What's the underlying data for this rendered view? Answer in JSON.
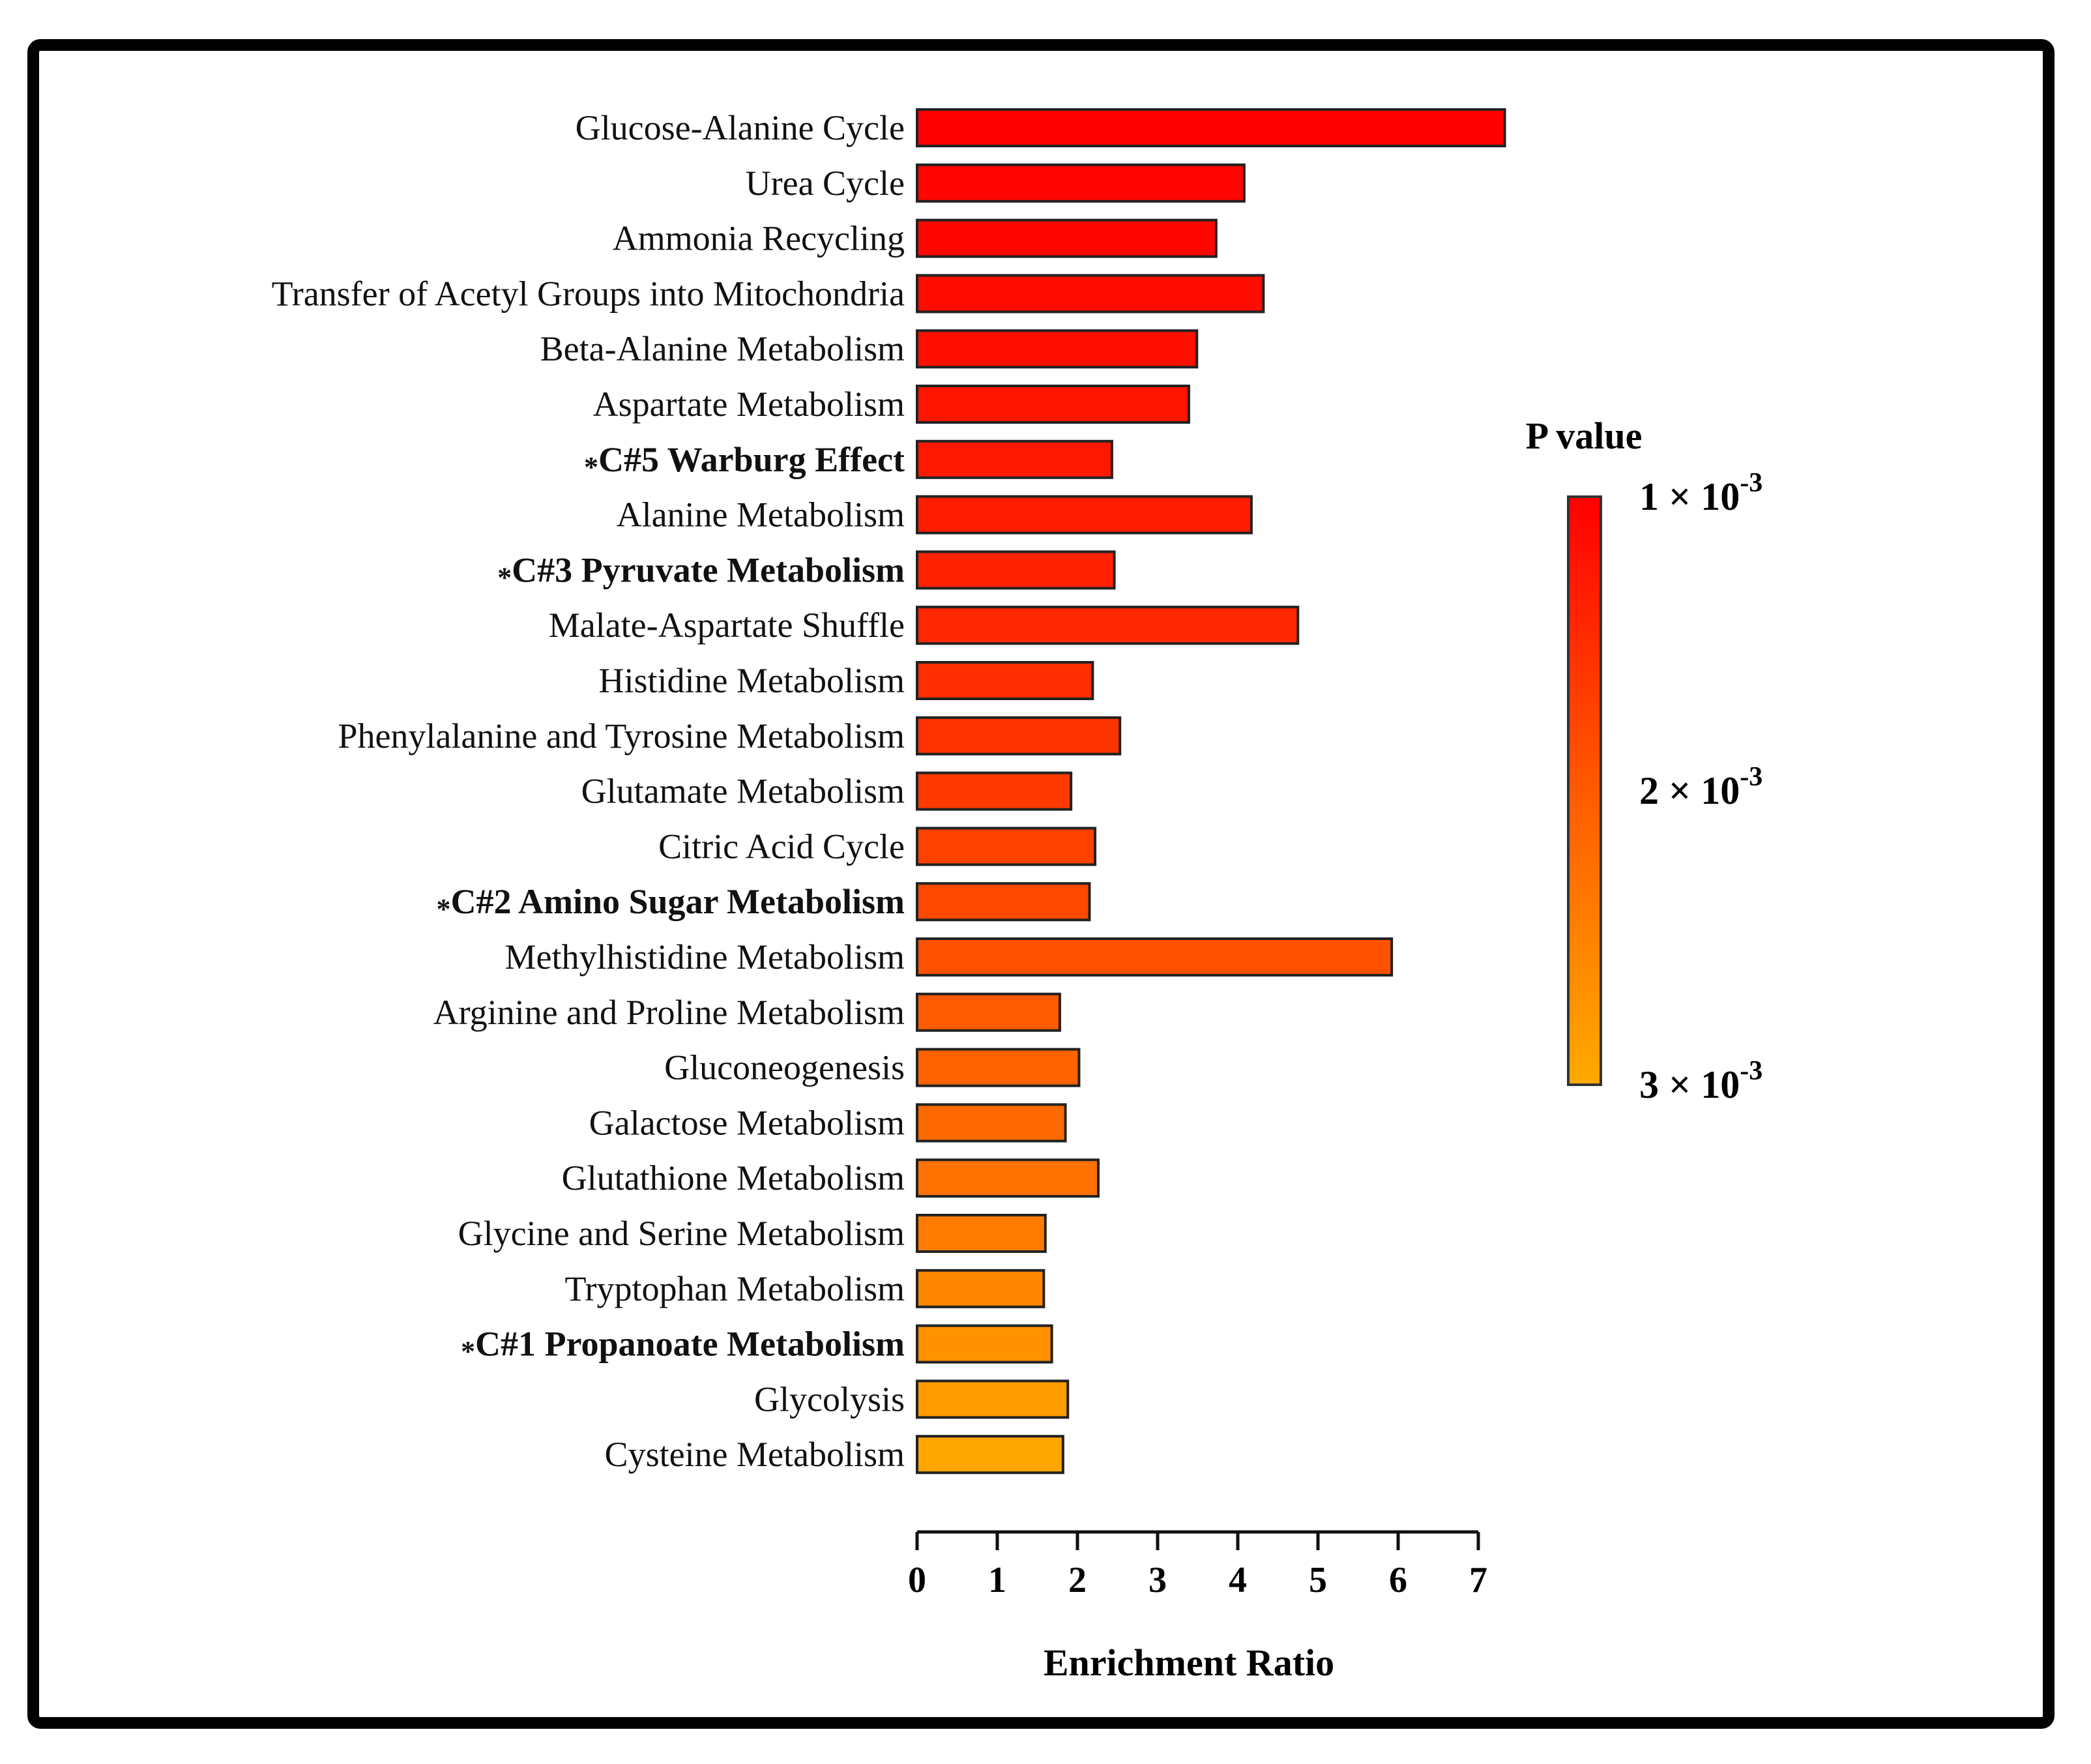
{
  "chart_data": {
    "type": "bar",
    "orientation": "horizontal",
    "xlabel": "Enrichment Ratio",
    "xlim": [
      0,
      7
    ],
    "xticks": [
      0,
      1,
      2,
      3,
      4,
      5,
      6,
      7
    ],
    "categories": [
      {
        "label": "Glucose-Alanine Cycle",
        "prefix": "",
        "value": 7.33,
        "p": 1.0,
        "bold": false
      },
      {
        "label": "Urea Cycle",
        "prefix": "",
        "value": 4.08,
        "p": 1.04,
        "bold": false
      },
      {
        "label": "Ammonia Recycling",
        "prefix": "",
        "value": 3.73,
        "p": 1.08,
        "bold": false
      },
      {
        "label": "Transfer of Acetyl Groups into Mitochondria",
        "prefix": "",
        "value": 4.32,
        "p": 1.12,
        "bold": false
      },
      {
        "label": "Beta-Alanine Metabolism",
        "prefix": "",
        "value": 3.49,
        "p": 1.17,
        "bold": false
      },
      {
        "label": "Aspartate Metabolism",
        "prefix": "",
        "value": 3.39,
        "p": 1.22,
        "bold": false
      },
      {
        "label": "C#5 Warburg Effect",
        "prefix": "*",
        "value": 2.43,
        "p": 1.27,
        "bold": true
      },
      {
        "label": "Alanine Metabolism",
        "prefix": "",
        "value": 4.17,
        "p": 1.32,
        "bold": false
      },
      {
        "label": "C#3 Pyruvate Metabolism",
        "prefix": "*",
        "value": 2.46,
        "p": 1.37,
        "bold": true
      },
      {
        "label": "Malate-Aspartate Shuffle",
        "prefix": "",
        "value": 4.75,
        "p": 1.43,
        "bold": false
      },
      {
        "label": "Histidine Metabolism",
        "prefix": "",
        "value": 2.19,
        "p": 1.5,
        "bold": false
      },
      {
        "label": "Phenylalanine and Tyrosine Metabolism",
        "prefix": "",
        "value": 2.53,
        "p": 1.57,
        "bold": false
      },
      {
        "label": "Glutamate Metabolism",
        "prefix": "",
        "value": 1.92,
        "p": 1.64,
        "bold": false
      },
      {
        "label": "Citric Acid Cycle",
        "prefix": "",
        "value": 2.22,
        "p": 1.72,
        "bold": false
      },
      {
        "label": "C#2 Amino Sugar Metabolism",
        "prefix": "*",
        "value": 2.15,
        "p": 1.8,
        "bold": true
      },
      {
        "label": "Methylhistidine Metabolism",
        "prefix": "",
        "value": 5.92,
        "p": 1.9,
        "bold": false
      },
      {
        "label": "Arginine and Proline Metabolism",
        "prefix": "",
        "value": 1.78,
        "p": 2.0,
        "bold": false
      },
      {
        "label": "Gluconeogenesis",
        "prefix": "",
        "value": 2.02,
        "p": 2.1,
        "bold": false
      },
      {
        "label": "Galactose Metabolism",
        "prefix": "",
        "value": 1.85,
        "p": 2.2,
        "bold": false
      },
      {
        "label": "Glutathione Metabolism",
        "prefix": "",
        "value": 2.26,
        "p": 2.3,
        "bold": false
      },
      {
        "label": "Glycine and Serine Metabolism",
        "prefix": "",
        "value": 1.6,
        "p": 2.42,
        "bold": false
      },
      {
        "label": "Tryptophan Metabolism",
        "prefix": "",
        "value": 1.58,
        "p": 2.55,
        "bold": false
      },
      {
        "label": "C#1 Propanoate Metabolism",
        "prefix": "*",
        "value": 1.68,
        "p": 2.68,
        "bold": true
      },
      {
        "label": "Glycolysis",
        "prefix": "",
        "value": 1.88,
        "p": 2.82,
        "bold": false
      },
      {
        "label": "Cysteine Metabolism",
        "prefix": "",
        "value": 1.82,
        "p": 2.95,
        "bold": false
      }
    ],
    "legend": {
      "title": "P value",
      "ticks": [
        {
          "mantissa": "1 × 10",
          "exponent": "-3",
          "value": 1.0
        },
        {
          "mantissa": "2 × 10",
          "exponent": "-3",
          "value": 2.0
        },
        {
          "mantissa": "3 × 10",
          "exponent": "-3",
          "value": 3.0
        }
      ],
      "colors": {
        "low": "#ff0000",
        "mid": "#ff5a00",
        "high": "#ffaa00"
      }
    }
  }
}
